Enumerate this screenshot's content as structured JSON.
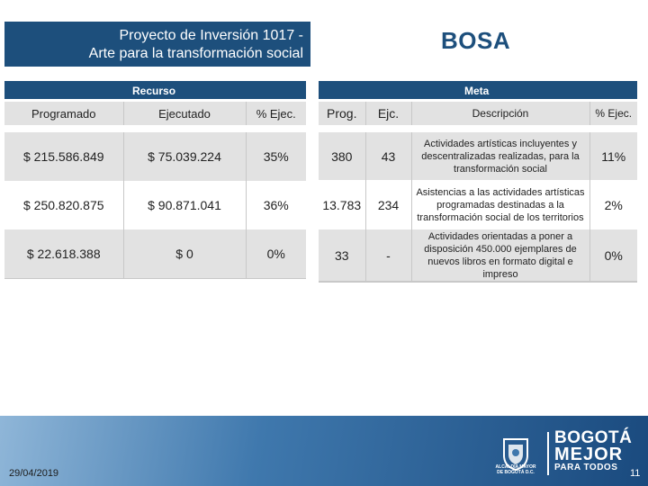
{
  "title": {
    "line1": "Proyecto de Inversión 1017 -",
    "line2": "Arte para la transformación social",
    "locality": "BOSA"
  },
  "recurso": {
    "header": "Recurso",
    "columns": [
      "Programado",
      "Ejecutado",
      "% Ejec."
    ],
    "rows": [
      [
        "$ 215.586.849",
        "$ 75.039.224",
        "35%"
      ],
      [
        "$ 250.820.875",
        "$ 90.871.041",
        "36%"
      ],
      [
        "$ 22.618.388",
        "$ 0",
        "0%"
      ]
    ]
  },
  "meta": {
    "header": "Meta",
    "columns": [
      "Prog.",
      "Ejc.",
      "Descripción",
      "% Ejec."
    ],
    "rows": [
      [
        "380",
        "43",
        "Actividades artísticas incluyentes y descentralizadas realizadas, para la transformación social",
        "11%"
      ],
      [
        "13.783",
        "234",
        "Asistencias a las actividades artísticas programadas destinadas a la transformación social de los territorios",
        "2%"
      ],
      [
        "33",
        "-",
        "Actividades orientadas a poner a disposición 450.000 ejemplares de nuevos libros en formato digital e impreso",
        "0%"
      ]
    ]
  },
  "footer": {
    "date": "29/04/2019",
    "page": "11",
    "seal_caption_1": "ALCALDÍA MAYOR",
    "seal_caption_2": "DE BOGOTÁ D.C.",
    "logo_line1": "BOGOTÁ",
    "logo_line2": "MEJOR",
    "logo_line3": "PARA TODOS"
  },
  "colors": {
    "primary": "#1d4f7c",
    "row_gray": "#e2e2e2"
  }
}
